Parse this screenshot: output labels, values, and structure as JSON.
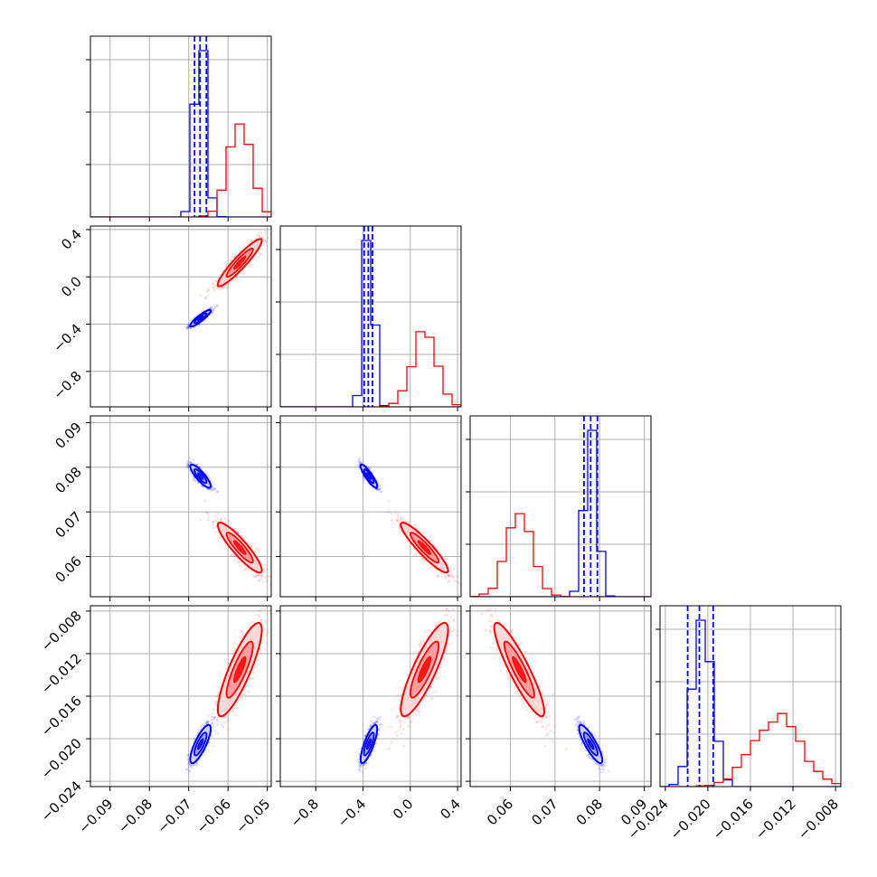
{
  "chart_data": {
    "type": "corner",
    "parameters": 4,
    "grid": true,
    "series": [
      {
        "color": "#0000ff",
        "means": [
          -0.067,
          -0.35,
          0.078,
          -0.0205
        ],
        "sds": [
          0.0013,
          0.035,
          0.0013,
          0.0009
        ],
        "corr": [
          [
            1,
            0.9,
            -0.85,
            0.8
          ],
          [
            0.9,
            1,
            -0.88,
            0.8
          ],
          [
            -0.85,
            -0.88,
            1,
            -0.85
          ],
          [
            0.8,
            0.8,
            -0.85,
            1
          ]
        ],
        "quantile_lines": [
          [
            -0.0685,
            -0.0671,
            -0.0655
          ],
          [
            -0.39,
            -0.355,
            -0.32
          ],
          [
            0.0765,
            0.078,
            0.0795
          ],
          [
            -0.0219,
            -0.0208,
            -0.0195
          ]
        ]
      },
      {
        "color": "#ff0000",
        "means": [
          -0.057,
          0.12,
          0.062,
          -0.0135
        ],
        "sds": [
          0.0028,
          0.1,
          0.0028,
          0.0022
        ],
        "corr": [
          [
            1,
            0.93,
            -0.9,
            0.85
          ],
          [
            0.93,
            1,
            -0.92,
            0.85
          ],
          [
            -0.9,
            -0.92,
            1,
            -0.9
          ],
          [
            0.85,
            0.85,
            -0.9,
            1
          ]
        ]
      }
    ],
    "axes": [
      {
        "range": [
          -0.095,
          -0.049
        ],
        "ticks": [
          -0.09,
          -0.08,
          -0.07,
          -0.06,
          -0.05
        ],
        "labels": [
          "−0.09",
          "−0.08",
          "−0.07",
          "−0.06",
          "−0.05"
        ]
      },
      {
        "range": [
          -1.1,
          0.43
        ],
        "ticks": [
          -0.8,
          -0.4,
          0.0,
          0.4
        ],
        "labels": [
          "−0.8",
          "−0.4",
          "0.0",
          "0.4"
        ]
      },
      {
        "range": [
          0.051,
          0.0915
        ],
        "ticks": [
          0.06,
          0.07,
          0.08,
          0.09
        ],
        "labels": [
          "0.06",
          "0.07",
          "0.08",
          "0.09"
        ]
      },
      {
        "range": [
          -0.0245,
          -0.0075
        ],
        "ticks": [
          -0.024,
          -0.02,
          -0.016,
          -0.012,
          -0.008
        ],
        "labels": [
          "−0.024",
          "−0.020",
          "−0.016",
          "−0.012",
          "−0.008"
        ]
      }
    ]
  }
}
